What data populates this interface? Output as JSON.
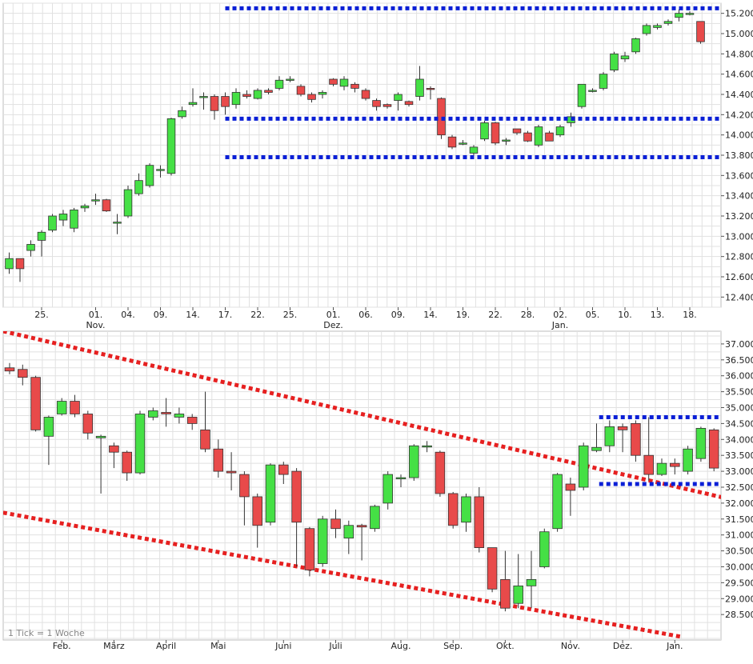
{
  "chart_data": [
    {
      "type": "candlestick",
      "y_ticks": [
        "12.400",
        "12.600",
        "12.800",
        "13.000",
        "13.200",
        "13.400",
        "13.600",
        "13.800",
        "14.000",
        "14.200",
        "14.400",
        "14.600",
        "14.800",
        "15.000",
        "15.200"
      ],
      "ylim": [
        12.3,
        15.3
      ],
      "x_tick_labels": [
        {
          "label": "25.",
          "i": 3
        },
        {
          "label": "01.",
          "i": 8,
          "sub": "Nov."
        },
        {
          "label": "04.",
          "i": 11
        },
        {
          "label": "09.",
          "i": 14
        },
        {
          "label": "14.",
          "i": 17
        },
        {
          "label": "17.",
          "i": 20
        },
        {
          "label": "22.",
          "i": 23
        },
        {
          "label": "25.",
          "i": 26
        },
        {
          "label": "01.",
          "i": 30,
          "sub": "Dez."
        },
        {
          "label": "06.",
          "i": 33
        },
        {
          "label": "09.",
          "i": 36
        },
        {
          "label": "14.",
          "i": 39
        },
        {
          "label": "19.",
          "i": 42
        },
        {
          "label": "22.",
          "i": 45
        },
        {
          "label": "28.",
          "i": 48
        },
        {
          "label": "02.",
          "i": 51,
          "sub": "Jan."
        },
        {
          "label": "05.",
          "i": 54
        },
        {
          "label": "10.",
          "i": 57
        },
        {
          "label": "13.",
          "i": 60
        },
        {
          "label": "18.",
          "i": 63
        }
      ],
      "candles": [
        [
          12.68,
          12.78,
          12.84,
          12.63
        ],
        [
          12.78,
          12.68,
          12.75,
          12.55
        ],
        [
          12.86,
          12.92,
          12.96,
          12.8
        ],
        [
          12.96,
          13.04,
          13.06,
          12.8
        ],
        [
          13.06,
          13.2,
          13.22,
          13.04
        ],
        [
          13.16,
          13.22,
          13.26,
          13.1
        ],
        [
          13.08,
          13.26,
          13.28,
          13.04
        ],
        [
          13.28,
          13.3,
          13.32,
          13.24
        ],
        [
          13.35,
          13.36,
          13.42,
          13.31
        ],
        [
          13.36,
          13.25,
          13.37,
          13.24
        ],
        [
          13.14,
          13.14,
          13.22,
          13.02
        ],
        [
          13.2,
          13.46,
          13.5,
          13.18
        ],
        [
          13.42,
          13.55,
          13.62,
          13.4
        ],
        [
          13.5,
          13.7,
          13.72,
          13.48
        ],
        [
          13.66,
          13.66,
          13.7,
          13.58
        ],
        [
          13.62,
          14.16,
          14.17,
          13.6
        ],
        [
          14.18,
          14.24,
          14.28,
          14.16
        ],
        [
          14.3,
          14.32,
          14.46,
          14.28
        ],
        [
          14.38,
          14.38,
          14.42,
          14.25
        ],
        [
          14.38,
          14.24,
          14.4,
          14.15
        ],
        [
          14.38,
          14.28,
          14.42,
          14.2
        ],
        [
          14.3,
          14.42,
          14.46,
          14.26
        ],
        [
          14.4,
          14.38,
          14.44,
          14.36
        ],
        [
          14.36,
          14.44,
          14.46,
          14.35
        ],
        [
          14.44,
          14.42,
          14.46,
          14.4
        ],
        [
          14.46,
          14.54,
          14.58,
          14.44
        ],
        [
          14.55,
          14.55,
          14.58,
          14.52
        ],
        [
          14.48,
          14.4,
          14.5,
          14.38
        ],
        [
          14.4,
          14.35,
          14.42,
          14.32
        ],
        [
          14.4,
          14.42,
          14.44,
          14.36
        ],
        [
          14.55,
          14.5,
          14.56,
          14.48
        ],
        [
          14.48,
          14.55,
          14.58,
          14.44
        ],
        [
          14.5,
          14.46,
          14.52,
          14.42
        ],
        [
          14.44,
          14.36,
          14.46,
          14.34
        ],
        [
          14.34,
          14.28,
          14.36,
          14.24
        ],
        [
          14.3,
          14.28,
          14.31,
          14.26
        ],
        [
          14.34,
          14.4,
          14.42,
          14.24
        ],
        [
          14.33,
          14.3,
          14.34,
          14.28
        ],
        [
          14.38,
          14.55,
          14.68,
          14.34
        ],
        [
          14.46,
          14.45,
          14.48,
          14.35
        ],
        [
          14.36,
          14.0,
          14.37,
          13.96
        ],
        [
          13.98,
          13.88,
          14.0,
          13.86
        ],
        [
          13.92,
          13.92,
          13.95,
          13.9
        ],
        [
          13.82,
          13.88,
          13.9,
          13.8
        ],
        [
          13.96,
          14.12,
          14.14,
          13.94
        ],
        [
          14.12,
          13.92,
          14.13,
          13.9
        ],
        [
          13.95,
          13.95,
          13.97,
          13.9
        ],
        [
          14.06,
          14.02,
          14.06,
          14.0
        ],
        [
          14.02,
          13.94,
          14.04,
          13.93
        ],
        [
          13.9,
          14.08,
          14.1,
          13.88
        ],
        [
          14.02,
          13.94,
          14.04,
          13.94
        ],
        [
          14.0,
          14.08,
          14.1,
          13.98
        ],
        [
          14.12,
          14.18,
          14.22,
          14.08
        ],
        [
          14.28,
          14.5,
          14.5,
          14.26
        ],
        [
          14.44,
          14.44,
          14.46,
          14.42
        ],
        [
          14.46,
          14.6,
          14.62,
          14.44
        ],
        [
          14.64,
          14.8,
          14.82,
          14.62
        ],
        [
          14.75,
          14.78,
          14.82,
          14.72
        ],
        [
          14.82,
          14.95,
          14.96,
          14.8
        ],
        [
          15.0,
          15.08,
          15.1,
          14.98
        ],
        [
          15.06,
          15.08,
          15.1,
          15.04
        ],
        [
          15.1,
          15.12,
          15.14,
          15.08
        ],
        [
          15.16,
          15.2,
          15.24,
          15.12
        ],
        [
          15.2,
          15.2,
          15.22,
          15.18
        ],
        [
          15.12,
          14.92,
          15.12,
          14.9
        ]
      ],
      "bull_color": "#45e045",
      "bear_color": "#e84a4a",
      "levels": [
        {
          "value": 15.25,
          "from_i": 20,
          "to_i": 72,
          "color": "#0a1fd6"
        },
        {
          "value": 14.16,
          "from_i": 20,
          "to_i": 72,
          "color": "#0a1fd6"
        },
        {
          "value": 13.78,
          "from_i": 20,
          "to_i": 72,
          "color": "#0a1fd6"
        }
      ]
    },
    {
      "type": "candlestick",
      "y_ticks": [
        "28.500",
        "29.000",
        "29.500",
        "30.000",
        "30.500",
        "31.000",
        "31.500",
        "32.000",
        "32.500",
        "33.000",
        "33.500",
        "34.000",
        "34.500",
        "35.000",
        "35.500",
        "36.000",
        "36.500",
        "37.000"
      ],
      "ylim": [
        27.7,
        37.4
      ],
      "x_tick_labels": [
        {
          "label": "Feb.",
          "i": 4
        },
        {
          "label": "März",
          "i": 8
        },
        {
          "label": "April",
          "i": 12
        },
        {
          "label": "Mai",
          "i": 16
        },
        {
          "label": "Juni",
          "i": 21
        },
        {
          "label": "Juli",
          "i": 25
        },
        {
          "label": "Aug.",
          "i": 30
        },
        {
          "label": "Sep.",
          "i": 34
        },
        {
          "label": "Okt.",
          "i": 38
        },
        {
          "label": "Nov.",
          "i": 43
        },
        {
          "label": "Dez.",
          "i": 47
        },
        {
          "label": "Jan.",
          "i": 51
        }
      ],
      "candles": [
        [
          36.25,
          36.15,
          36.4,
          36.05
        ],
        [
          36.2,
          35.95,
          36.35,
          35.7
        ],
        [
          35.95,
          34.3,
          36.0,
          34.25
        ],
        [
          34.1,
          34.7,
          34.75,
          33.2
        ],
        [
          34.8,
          35.2,
          35.3,
          34.75
        ],
        [
          35.2,
          34.8,
          35.4,
          34.7
        ],
        [
          34.8,
          34.2,
          34.9,
          34.0
        ],
        [
          34.05,
          34.1,
          34.15,
          32.3
        ],
        [
          33.8,
          33.6,
          33.9,
          33.1
        ],
        [
          33.6,
          32.95,
          33.65,
          32.7
        ],
        [
          32.95,
          34.8,
          34.9,
          32.9
        ],
        [
          34.7,
          34.9,
          35.0,
          34.6
        ],
        [
          34.85,
          34.8,
          35.3,
          34.4
        ],
        [
          34.7,
          34.8,
          35.0,
          34.5
        ],
        [
          34.7,
          34.5,
          34.8,
          34.3
        ],
        [
          34.3,
          33.7,
          35.5,
          33.6
        ],
        [
          33.7,
          33.0,
          34.0,
          32.8
        ],
        [
          33.0,
          32.95,
          33.6,
          32.4
        ],
        [
          32.9,
          32.2,
          33.0,
          31.3
        ],
        [
          32.2,
          31.3,
          32.3,
          30.6
        ],
        [
          31.4,
          33.2,
          33.25,
          31.3
        ],
        [
          33.2,
          32.9,
          33.3,
          32.6
        ],
        [
          33.0,
          31.4,
          33.1,
          30.0
        ],
        [
          31.2,
          29.9,
          31.25,
          29.7
        ],
        [
          30.1,
          31.5,
          31.6,
          30.0
        ],
        [
          31.5,
          31.2,
          31.8,
          30.9
        ],
        [
          30.9,
          31.3,
          31.45,
          30.4
        ],
        [
          31.3,
          31.25,
          31.35,
          30.2
        ],
        [
          31.2,
          31.9,
          31.95,
          31.1
        ],
        [
          32.0,
          32.9,
          33.0,
          31.8
        ],
        [
          32.8,
          32.8,
          32.9,
          32.5
        ],
        [
          32.8,
          33.8,
          33.85,
          32.7
        ],
        [
          33.8,
          33.8,
          33.95,
          33.6
        ],
        [
          33.6,
          32.3,
          33.65,
          32.2
        ],
        [
          32.3,
          31.3,
          32.35,
          31.2
        ],
        [
          31.4,
          32.2,
          32.3,
          31.1
        ],
        [
          32.2,
          30.6,
          32.5,
          30.45
        ],
        [
          30.6,
          29.3,
          30.6,
          29.2
        ],
        [
          29.6,
          28.7,
          30.5,
          28.6
        ],
        [
          28.85,
          29.4,
          30.4,
          28.7
        ],
        [
          29.4,
          29.6,
          30.5,
          28.7
        ],
        [
          30.0,
          31.1,
          31.2,
          29.95
        ],
        [
          31.2,
          32.9,
          32.95,
          31.1
        ],
        [
          32.6,
          32.4,
          32.8,
          31.6
        ],
        [
          32.5,
          33.8,
          33.9,
          32.4
        ],
        [
          33.65,
          33.75,
          34.5,
          33.6
        ],
        [
          33.8,
          34.4,
          34.6,
          33.6
        ],
        [
          34.4,
          34.3,
          34.5,
          33.6
        ],
        [
          34.5,
          33.5,
          34.6,
          33.3
        ],
        [
          33.5,
          32.9,
          34.7,
          32.7
        ],
        [
          32.9,
          33.25,
          33.4,
          32.85
        ],
        [
          33.25,
          33.15,
          33.4,
          32.9
        ],
        [
          33.0,
          33.7,
          33.8,
          32.9
        ],
        [
          33.4,
          34.35,
          34.4,
          33.3
        ],
        [
          34.3,
          33.1,
          34.35,
          33.0
        ]
      ],
      "bull_color": "#45e045",
      "bear_color": "#e84a4a",
      "lines": [
        {
          "from_i": -0.5,
          "from_v": 37.4,
          "to_i": 55.5,
          "to_v": 32.1,
          "color": "#e62020"
        },
        {
          "from_i": -0.5,
          "from_v": 31.7,
          "to_i": 51.5,
          "to_v": 27.8,
          "color": "#e62020"
        }
      ],
      "levels": [
        {
          "value": 34.7,
          "from_i": 45.2,
          "to_i": 55.5,
          "color": "#0a1fd6"
        },
        {
          "value": 32.6,
          "from_i": 45.2,
          "to_i": 55.5,
          "color": "#0a1fd6"
        }
      ],
      "footnote": "1 Tick = 1 Woche"
    }
  ]
}
